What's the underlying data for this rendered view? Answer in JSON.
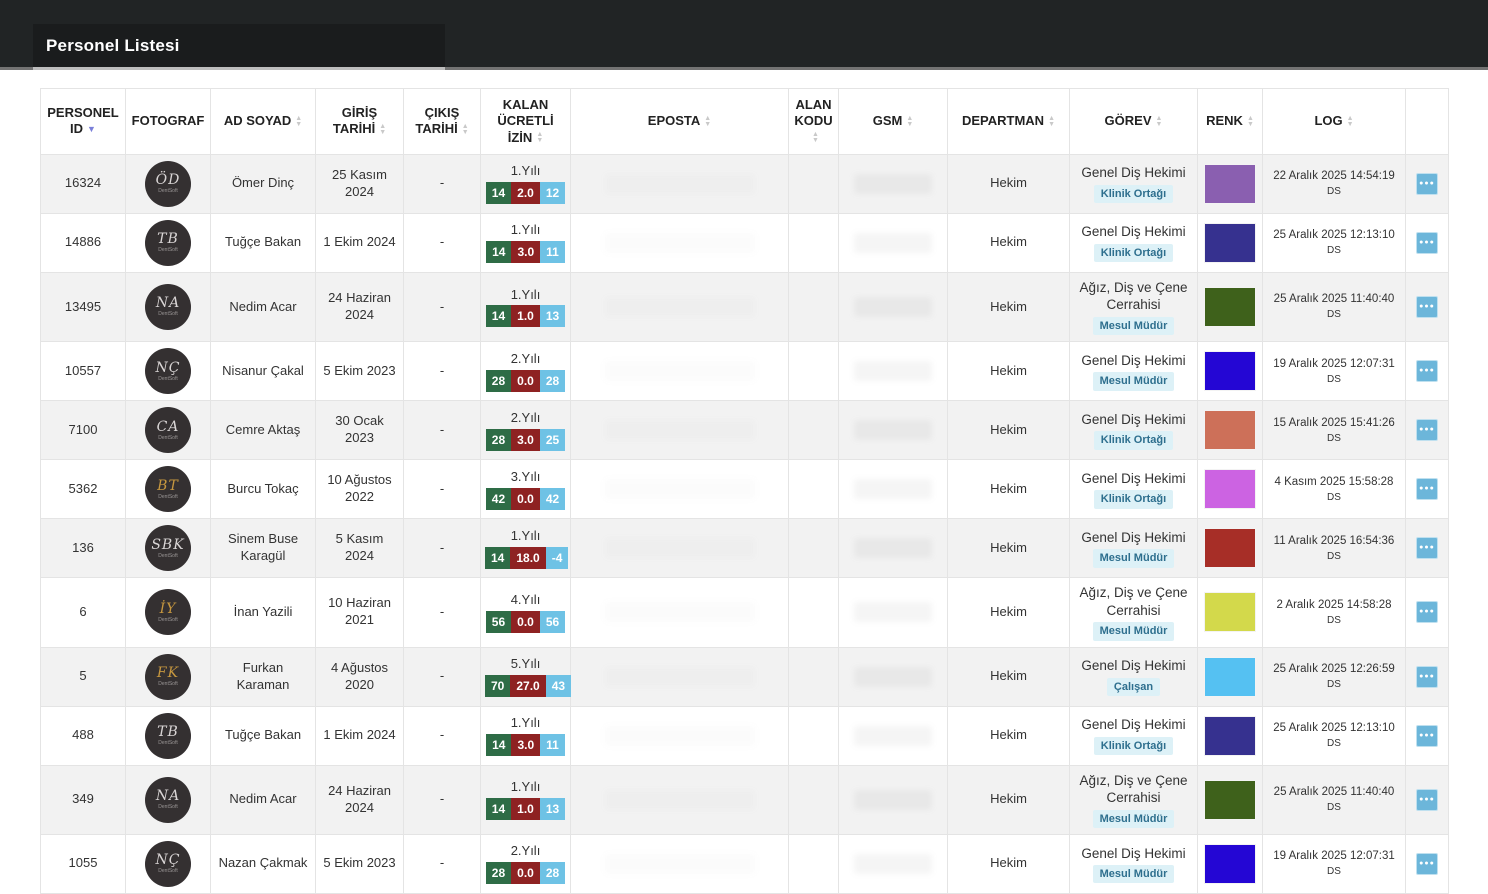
{
  "header": {
    "title": "Personel Listesi"
  },
  "icons": {
    "sort_asc": "▲",
    "sort_desc": "▼",
    "ellipsis": "●●●"
  },
  "colors": {
    "topbar_bg": "#212425",
    "badge_green": "#2e6c46",
    "badge_red": "#8e2222",
    "badge_blue": "#6ec2e5",
    "role_badge_bg": "#ddf1f7",
    "role_badge_text": "#2e6f8e",
    "action_button": "#6cb6da",
    "sorted_arrow": "#7a7fd9"
  },
  "table": {
    "avatar_brand": "DentSoft",
    "columns": [
      {
        "key": "id",
        "label": "PERSONEL ID",
        "sort": "desc"
      },
      {
        "key": "foto",
        "label": "FOTOGRAF",
        "sort": null
      },
      {
        "key": "name",
        "label": "AD SOYAD",
        "sort": "both"
      },
      {
        "key": "entry",
        "label": "GİRİŞ TARİHİ",
        "sort": "both"
      },
      {
        "key": "exit",
        "label": "ÇIKIŞ TARİHİ",
        "sort": "both"
      },
      {
        "key": "izin",
        "label": "KALAN ÜCRETLİ İZİN",
        "sort": "both"
      },
      {
        "key": "eposta",
        "label": "EPOSTA",
        "sort": "both"
      },
      {
        "key": "alan",
        "label": "ALAN KODU",
        "sort": "both"
      },
      {
        "key": "gsm",
        "label": "GSM",
        "sort": "both"
      },
      {
        "key": "departman",
        "label": "DEPARTMAN",
        "sort": "both"
      },
      {
        "key": "gorev",
        "label": "GÖREV",
        "sort": "both"
      },
      {
        "key": "renk",
        "label": "RENK",
        "sort": "both"
      },
      {
        "key": "log",
        "label": "LOG",
        "sort": "both"
      },
      {
        "key": "actions",
        "label": "",
        "sort": null
      }
    ],
    "rows": [
      {
        "id": "16324",
        "initials": "ÖD",
        "initials_style": "silver",
        "name": "Ömer Dinç",
        "entry": "25 Kasım 2024",
        "exit": "-",
        "izin_year": "1.Yılı",
        "izin": [
          "14",
          "2.0",
          "12"
        ],
        "eposta": "",
        "alan_kodu": "",
        "gsm": "",
        "departman": "Hekim",
        "gorev": "Genel Diş Hekimi",
        "gorev_badge": "Klinik Ortağı",
        "renk": "#8a5fb0",
        "log_date": "22 Aralık 2025 14:54:19",
        "log_user": "DS"
      },
      {
        "id": "14886",
        "initials": "TB",
        "initials_style": "silver",
        "name": "Tuğçe Bakan",
        "entry": "1 Ekim 2024",
        "exit": "-",
        "izin_year": "1.Yılı",
        "izin": [
          "14",
          "3.0",
          "11"
        ],
        "eposta": "",
        "alan_kodu": "",
        "gsm": "",
        "departman": "Hekim",
        "gorev": "Genel Diş Hekimi",
        "gorev_badge": "Klinik Ortağı",
        "renk": "#36318f",
        "log_date": "25 Aralık 2025 12:13:10",
        "log_user": "DS"
      },
      {
        "id": "13495",
        "initials": "NA",
        "initials_style": "silver",
        "name": "Nedim Acar",
        "entry": "24 Haziran 2024",
        "exit": "-",
        "izin_year": "1.Yılı",
        "izin": [
          "14",
          "1.0",
          "13"
        ],
        "eposta": "",
        "alan_kodu": "",
        "gsm": "",
        "departman": "Hekim",
        "gorev": "Ağız, Diş ve Çene Cerrahisi",
        "gorev_badge": "Mesul Müdür",
        "renk": "#3e611b",
        "log_date": "25 Aralık 2025 11:40:40",
        "log_user": "DS"
      },
      {
        "id": "10557",
        "initials": "NÇ",
        "initials_style": "silver",
        "name": "Nisanur Çakal",
        "entry": "5 Ekim 2023",
        "exit": "-",
        "izin_year": "2.Yılı",
        "izin": [
          "28",
          "0.0",
          "28"
        ],
        "eposta": "",
        "alan_kodu": "",
        "gsm": "",
        "departman": "Hekim",
        "gorev": "Genel Diş Hekimi",
        "gorev_badge": "Mesul Müdür",
        "renk": "#2406d4",
        "log_date": "19 Aralık 2025 12:07:31",
        "log_user": "DS"
      },
      {
        "id": "7100",
        "initials": "CA",
        "initials_style": "silver",
        "name": "Cemre Aktaş",
        "entry": "30 Ocak 2023",
        "exit": "-",
        "izin_year": "2.Yılı",
        "izin": [
          "28",
          "3.0",
          "25"
        ],
        "eposta": "",
        "alan_kodu": "",
        "gsm": "",
        "departman": "Hekim",
        "gorev": "Genel Diş Hekimi",
        "gorev_badge": "Klinik Ortağı",
        "renk": "#cd7059",
        "log_date": "15 Aralık 2025 15:41:26",
        "log_user": "DS"
      },
      {
        "id": "5362",
        "initials": "BT",
        "initials_style": "gold",
        "name": "Burcu Tokaç",
        "entry": "10 Ağustos 2022",
        "exit": "-",
        "izin_year": "3.Yılı",
        "izin": [
          "42",
          "0.0",
          "42"
        ],
        "eposta": "",
        "alan_kodu": "",
        "gsm": "",
        "departman": "Hekim",
        "gorev": "Genel Diş Hekimi",
        "gorev_badge": "Klinik Ortağı",
        "renk": "#cc63e2",
        "log_date": "4 Kasım 2025 15:58:28",
        "log_user": "DS"
      },
      {
        "id": "136",
        "initials": "SBK",
        "initials_style": "silver",
        "name": "Sinem Buse Karagül",
        "entry": "5 Kasım 2024",
        "exit": "-",
        "izin_year": "1.Yılı",
        "izin": [
          "14",
          "18.0",
          "-4"
        ],
        "eposta": "",
        "alan_kodu": "",
        "gsm": "",
        "departman": "Hekim",
        "gorev": "Genel Diş Hekimi",
        "gorev_badge": "Mesul Müdür",
        "renk": "#a72e27",
        "log_date": "11 Aralık 2025 16:54:36",
        "log_user": "DS"
      },
      {
        "id": "6",
        "initials": "İY",
        "initials_style": "gold",
        "name": "İnan Yazili",
        "entry": "10 Haziran 2021",
        "exit": "-",
        "izin_year": "4.Yılı",
        "izin": [
          "56",
          "0.0",
          "56"
        ],
        "eposta": "",
        "alan_kodu": "",
        "gsm": "",
        "departman": "Hekim",
        "gorev": "Ağız, Diş ve Çene Cerrahisi",
        "gorev_badge": "Mesul Müdür",
        "renk": "#d3d94b",
        "log_date": "2 Aralık 2025 14:58:28",
        "log_user": "DS"
      },
      {
        "id": "5",
        "initials": "FK",
        "initials_style": "gold",
        "name": "Furkan Karaman",
        "entry": "4 Ağustos 2020",
        "exit": "-",
        "izin_year": "5.Yılı",
        "izin": [
          "70",
          "27.0",
          "43"
        ],
        "eposta": "",
        "alan_kodu": "",
        "gsm": "",
        "departman": "Hekim",
        "gorev": "Genel Diş Hekimi",
        "gorev_badge": "Çalışan",
        "renk": "#55c1f2",
        "log_date": "25 Aralık 2025 12:26:59",
        "log_user": "DS"
      },
      {
        "id": "488",
        "initials": "TB",
        "initials_style": "silver",
        "name": "Tuğçe Bakan",
        "entry": "1 Ekim 2024",
        "exit": "-",
        "izin_year": "1.Yılı",
        "izin": [
          "14",
          "3.0",
          "11"
        ],
        "eposta": "",
        "alan_kodu": "",
        "gsm": "",
        "departman": "Hekim",
        "gorev": "Genel Diş Hekimi",
        "gorev_badge": "Klinik Ortağı",
        "renk": "#36318f",
        "log_date": "25 Aralık 2025 12:13:10",
        "log_user": "DS"
      },
      {
        "id": "349",
        "initials": "NA",
        "initials_style": "silver",
        "name": "Nedim Acar",
        "entry": "24 Haziran 2024",
        "exit": "-",
        "izin_year": "1.Yılı",
        "izin": [
          "14",
          "1.0",
          "13"
        ],
        "eposta": "",
        "alan_kodu": "",
        "gsm": "",
        "departman": "Hekim",
        "gorev": "Ağız, Diş ve Çene Cerrahisi",
        "gorev_badge": "Mesul Müdür",
        "renk": "#3e611b",
        "log_date": "25 Aralık 2025 11:40:40",
        "log_user": "DS"
      },
      {
        "id": "1055",
        "initials": "NÇ",
        "initials_style": "silver",
        "name": "Nazan Çakmak",
        "entry": "5 Ekim 2023",
        "exit": "-",
        "izin_year": "2.Yılı",
        "izin": [
          "28",
          "0.0",
          "28"
        ],
        "eposta": "",
        "alan_kodu": "",
        "gsm": "",
        "departman": "Hekim",
        "gorev": "Genel Diş Hekimi",
        "gorev_badge": "Mesul Müdür",
        "renk": "#2406d4",
        "log_date": "19 Aralık 2025 12:07:31",
        "log_user": "DS"
      }
    ]
  }
}
